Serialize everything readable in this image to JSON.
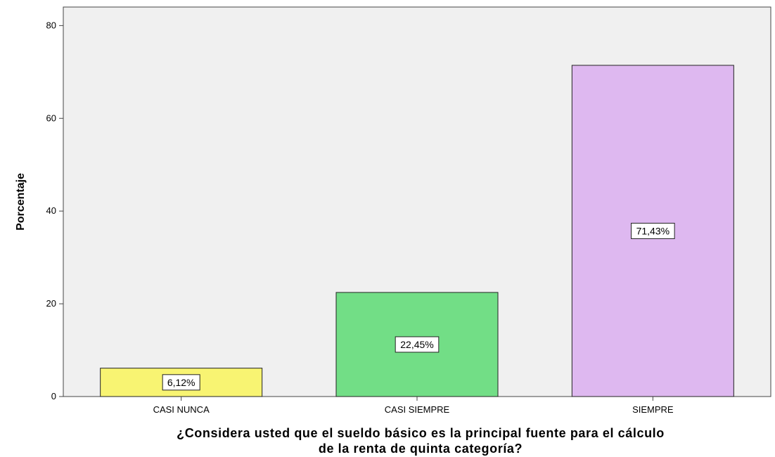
{
  "chart_data": {
    "type": "bar",
    "categories": [
      "CASI NUNCA",
      "CASI SIEMPRE",
      "SIEMPRE"
    ],
    "values": [
      6.12,
      22.45,
      71.43
    ],
    "data_labels": [
      "6,12%",
      "22,45%",
      "71,43%"
    ],
    "colors": [
      "#f8f472",
      "#72de86",
      "#deb8f0"
    ],
    "ylabel": "Porcentaje",
    "xlabel_lines": [
      "¿Considera usted que el sueldo básico es la principal fuente para el cálculo",
      "de la renta de quinta categoría?"
    ],
    "yticks": [
      0,
      20,
      40,
      60,
      80
    ],
    "ylim": [
      0,
      84
    ],
    "grid": false,
    "plot_background": "#f0f0f0"
  }
}
